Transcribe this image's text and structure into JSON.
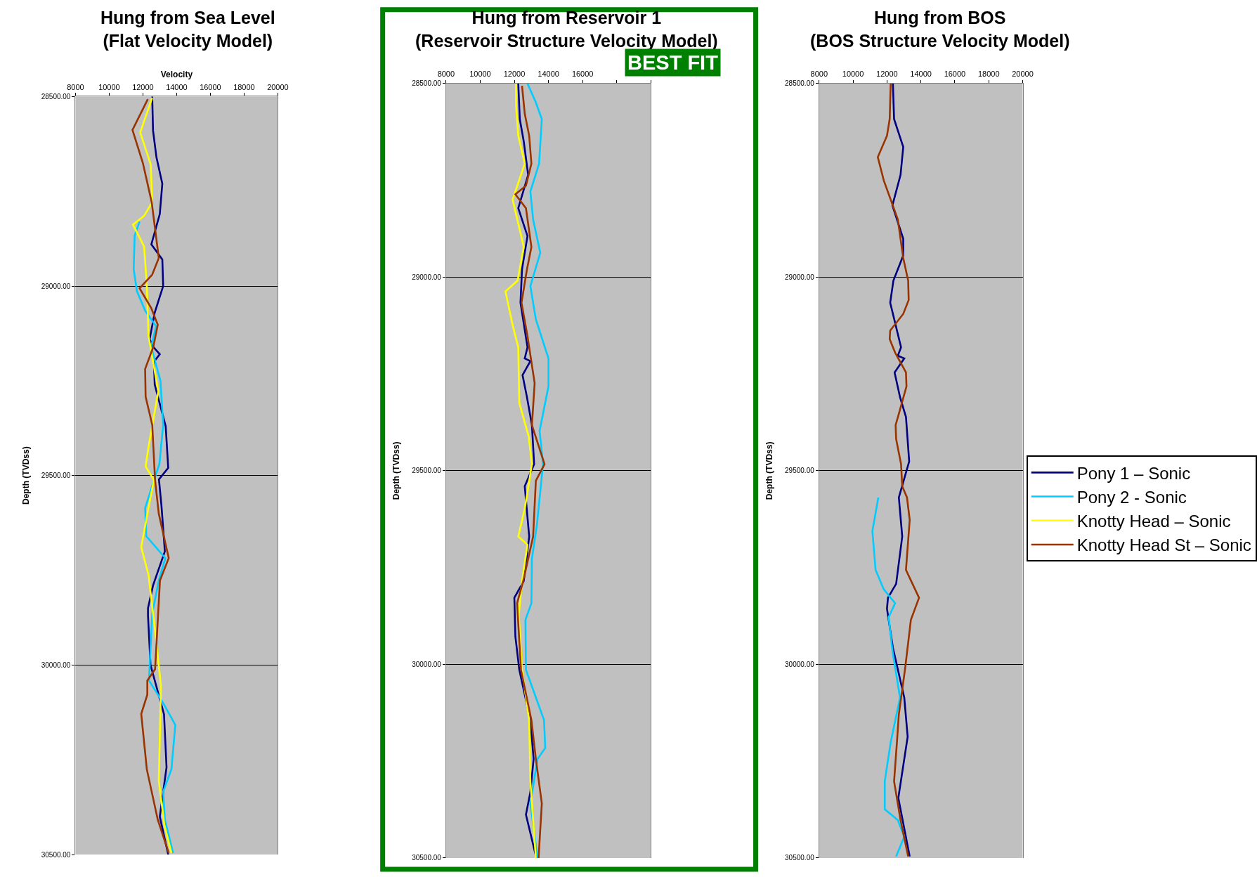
{
  "chart_data": [
    {
      "type": "line",
      "title": "Hung from Sea Level\n(Flat Velocity Model)",
      "xlabel": "Velocity",
      "ylabel": "Depth (TVDss)",
      "legend": "right",
      "xlim": [
        8000,
        20000
      ],
      "xticks": [
        8000,
        10000,
        12000,
        14000,
        16000,
        18000,
        20000
      ],
      "ylim": [
        30500,
        28500
      ],
      "yticks": [
        {
          "value": 28500,
          "label": "28500.00"
        },
        {
          "value": 29000,
          "label": "29000.00"
        },
        {
          "value": 29500,
          "label": "29500.00"
        },
        {
          "value": 30000,
          "label": "30000.00"
        },
        {
          "value": 30500,
          "label": "30500.00"
        }
      ],
      "grid": "y",
      "marker": "none",
      "line_style": "solid",
      "series": [
        {
          "name": "Pony 1 – Sonic",
          "color": "#000080",
          "x": [
            12550,
            12600,
            12800,
            13150,
            13000,
            12500,
            13150,
            13200,
            12700,
            12400,
            12600,
            13000,
            12650,
            12700,
            13350,
            13500,
            12950,
            13100,
            13300,
            12600,
            12300,
            12300,
            12450,
            13250,
            13400,
            13000,
            13500
          ],
          "values": [
            28500,
            28590,
            28660,
            28730,
            28810,
            28890,
            28930,
            29000,
            29070,
            29140,
            29160,
            29180,
            29200,
            29260,
            29370,
            29480,
            29510,
            29580,
            29700,
            29790,
            29850,
            29870,
            30000,
            30130,
            30270,
            30400,
            30500
          ]
        },
        {
          "name": "Pony 2 - Sonic",
          "color": "#00ccff",
          "x": [
            11800,
            11510,
            11450,
            11640,
            12130,
            12780,
            12490,
            13040,
            13200,
            12980,
            12550,
            12130,
            12200,
            13330,
            12940,
            12550,
            12360,
            13200,
            13920,
            13690,
            13200,
            13300,
            13790
          ],
          "values": [
            28830,
            28867,
            28955,
            29013,
            29065,
            29106,
            29160,
            29250,
            29366,
            29469,
            29527,
            29586,
            29660,
            29718,
            29777,
            29865,
            30041,
            30100,
            30158,
            30275,
            30334,
            30408,
            30496
          ]
        },
        {
          "name": "Knotty Head – Sonic",
          "color": "#ffff00",
          "x": [
            12550,
            11840,
            12460,
            12550,
            12070,
            11410,
            12070,
            12230,
            12330,
            12910,
            12330,
            12160,
            12650,
            12390,
            11900,
            12330,
            12720,
            13070,
            12940,
            13270,
            13690
          ],
          "values": [
            28503,
            28595,
            28679,
            28779,
            28815,
            28838,
            28896,
            28999,
            29131,
            29278,
            29425,
            29476,
            29512,
            29571,
            29689,
            29762,
            29909,
            30056,
            30305,
            30422,
            30496
          ]
        },
        {
          "name": "Knotty Head St – Sonic",
          "color": "#993300",
          "x": [
            12290,
            11380,
            12000,
            12520,
            12940,
            12550,
            11800,
            12490,
            12880,
            12620,
            12130,
            12160,
            12550,
            12720,
            12940,
            13530,
            13010,
            12720,
            12260,
            12260,
            11900,
            12230,
            12880,
            13530
          ],
          "values": [
            28507,
            28588,
            28676,
            28779,
            28926,
            28970,
            29006,
            29058,
            29102,
            29160,
            29219,
            29292,
            29366,
            29512,
            29601,
            29718,
            29777,
            30011,
            30041,
            30078,
            30129,
            30275,
            30408,
            30496
          ]
        }
      ]
    },
    {
      "type": "line",
      "title": "Hung from Reservoir 1\n(Reservoir Structure Velocity Model)",
      "ylabel": "Depth (TVDss)",
      "annotations": [
        "BEST FIT"
      ],
      "xlim": [
        8000,
        20000
      ],
      "xticks": [
        8000,
        10000,
        12000,
        14000,
        16000,
        {
          "value": 18000,
          "label": null
        },
        {
          "value": 20000,
          "label": null
        }
      ],
      "ylim": [
        30500,
        28500
      ],
      "yticks": [
        {
          "value": 28500,
          "label": "28500.00"
        },
        {
          "value": 29000,
          "label": "29000.00"
        },
        {
          "value": 29500,
          "label": "29500.00"
        },
        {
          "value": 30000,
          "label": "30000.00"
        },
        {
          "value": 30500,
          "label": "30500.00"
        }
      ],
      "grid": "y",
      "marker": "none",
      "line_style": "solid",
      "series": [
        {
          "name": "Pony 1 – Sonic",
          "color": "#000080",
          "x": [
            12230,
            12320,
            12550,
            12810,
            12230,
            12770,
            12450,
            12360,
            12770,
            12610,
            12940,
            12480,
            12740,
            13030,
            13160,
            12610,
            12870,
            12550,
            12000,
            12060,
            12290,
            12940,
            13130,
            12940,
            12680,
            13290
          ],
          "values": [
            28500,
            28592,
            28649,
            28736,
            28822,
            28894,
            28980,
            29066,
            29181,
            29210,
            29217,
            29253,
            29310,
            29382,
            29483,
            29540,
            29670,
            29785,
            29828,
            29928,
            30014,
            30144,
            30244,
            30330,
            30388,
            30500
          ]
        },
        {
          "name": "Pony 2 - Sonic",
          "color": "#00ccff",
          "x": [
            12770,
            13260,
            13610,
            13450,
            12940,
            13100,
            13520,
            12940,
            13260,
            14000,
            14000,
            13480,
            13680,
            13320,
            13030,
            13000,
            12650,
            12680,
            13740,
            13810,
            13360,
            12940,
            13360
          ],
          "values": [
            28500,
            28549,
            28592,
            28707,
            28779,
            28851,
            28937,
            29023,
            29109,
            29210,
            29282,
            29397,
            29483,
            29641,
            29727,
            29842,
            29885,
            30014,
            30144,
            30216,
            30244,
            30359,
            30500
          ]
        },
        {
          "name": "Knotty Head – Sonic",
          "color": "#ffff00",
          "x": [
            12100,
            12100,
            12230,
            12610,
            11900,
            12550,
            12190,
            11480,
            11900,
            12230,
            12290,
            12840,
            13030,
            12610,
            12230,
            12770,
            12450,
            12260,
            12450,
            12870,
            12940,
            13260
          ],
          "values": [
            28500,
            28556,
            28635,
            28707,
            28800,
            28922,
            29009,
            29037,
            29124,
            29181,
            29325,
            29411,
            29483,
            29598,
            29670,
            29691,
            29785,
            29871,
            30014,
            30144,
            30302,
            30500
          ]
        },
        {
          "name": "Knotty Head St – Sonic",
          "color": "#993300",
          "x": [
            12450,
            12610,
            12870,
            13000,
            12680,
            12060,
            12680,
            13000,
            12740,
            12420,
            12770,
            13190,
            13030,
            13770,
            13260,
            13100,
            12520,
            12160,
            12390,
            13000,
            13260,
            13610,
            13420
          ],
          "values": [
            28506,
            28578,
            28635,
            28707,
            28764,
            28786,
            28822,
            28922,
            28980,
            29066,
            29152,
            29274,
            29382,
            29483,
            29526,
            29670,
            29785,
            29842,
            30014,
            30144,
            30244,
            30359,
            30500
          ]
        }
      ]
    },
    {
      "type": "line",
      "title": "Hung from BOS\n(BOS Structure Velocity Model)",
      "ylabel": "Depth (TVDss)",
      "xlim": [
        8000,
        20000
      ],
      "xticks": [
        8000,
        10000,
        12000,
        14000,
        16000,
        18000,
        20000
      ],
      "ylim": [
        30500,
        28500
      ],
      "yticks": [
        {
          "value": 28500,
          "label": "28500.00"
        },
        {
          "value": 29000,
          "label": "29000.00"
        },
        {
          "value": 29500,
          "label": "29500.00"
        },
        {
          "value": 30000,
          "label": "30000.00"
        },
        {
          "value": 30500,
          "label": "30500.00"
        }
      ],
      "grid": "y",
      "legend": "right",
      "marker": "none",
      "line_style": "solid",
      "series": [
        {
          "name": "Pony 1 – Sonic",
          "color": "#000080",
          "x": [
            12350,
            12420,
            12960,
            12800,
            12320,
            12960,
            12960,
            12380,
            12190,
            12830,
            12640,
            13020,
            12450,
            12770,
            13120,
            13310,
            12700,
            12900,
            12540,
            12060,
            12000,
            12350,
            13020,
            13220,
            12670,
            13340
          ],
          "values": [
            28500,
            28592,
            28664,
            28736,
            28815,
            28901,
            28944,
            29009,
            29066,
            29181,
            29203,
            29210,
            29246,
            29310,
            29361,
            29476,
            29569,
            29670,
            29792,
            29828,
            29856,
            29957,
            30086,
            30187,
            30345,
            30496
          ]
        },
        {
          "name": "Pony 2 - Sonic",
          "color": "#00ccff",
          "x": [
            11490,
            11140,
            11330,
            11810,
            12480,
            12100,
            12320,
            12770,
            12220,
            11870,
            11870,
            12640,
            13020,
            12540
          ],
          "values": [
            29569,
            29656,
            29756,
            29806,
            29842,
            29878,
            29964,
            30086,
            30201,
            30302,
            30374,
            30402,
            30445,
            30496
          ]
        },
        {
          "name": "Knotty Head St – Sonic",
          "color": "#993300",
          "x": [
            12220,
            12160,
            12000,
            11460,
            11810,
            12640,
            12960,
            13250,
            13280,
            12960,
            12190,
            12160,
            12480,
            13120,
            13150,
            12700,
            12510,
            12540,
            12830,
            12900,
            13180,
            13340,
            13120,
            13890,
            13410,
            13060,
            12700,
            12610,
            12420,
            12800,
            13250
          ],
          "values": [
            28500,
            28592,
            28635,
            28690,
            28750,
            28851,
            28951,
            29009,
            29059,
            29095,
            29138,
            29160,
            29195,
            29246,
            29282,
            29353,
            29382,
            29418,
            29483,
            29540,
            29569,
            29627,
            29756,
            29828,
            29885,
            30014,
            30129,
            30187,
            30302,
            30402,
            30496
          ]
        }
      ]
    }
  ]
}
